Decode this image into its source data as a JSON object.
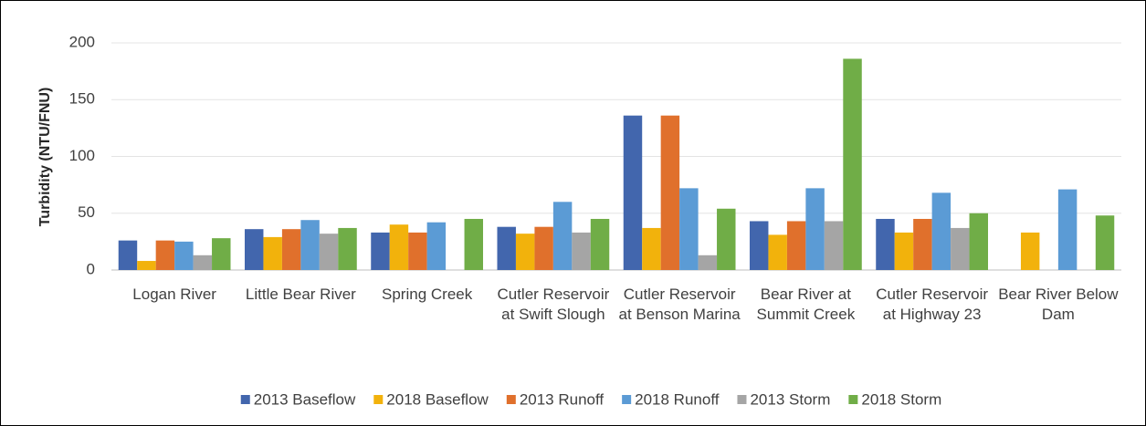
{
  "chart_data": {
    "type": "bar",
    "y_label": "Turbidity (NTU/FNU)",
    "categories": [
      "Logan River",
      "Little Bear River",
      "Spring Creek",
      "Cutler Reservoir at Swift Slough",
      "Cutler Reservoir at Benson Marina",
      "Bear River at Summit Creek",
      "Cutler Reservoir at Highway 23",
      "Bear River Below Dam"
    ],
    "series": [
      {
        "name": "2013 Baseflow",
        "color": "#4266ad",
        "values": [
          26,
          36,
          33,
          38,
          136,
          43,
          45,
          null
        ]
      },
      {
        "name": "2018 Baseflow",
        "color": "#f2b20c",
        "values": [
          8,
          29,
          40,
          32,
          37,
          31,
          33,
          33
        ]
      },
      {
        "name": "2013 Runoff",
        "color": "#e0702c",
        "values": [
          26,
          36,
          33,
          38,
          136,
          43,
          45,
          null
        ]
      },
      {
        "name": "2018 Runoff",
        "color": "#5b9bd5",
        "values": [
          25,
          44,
          42,
          60,
          72,
          72,
          68,
          71
        ]
      },
      {
        "name": "2013 Storm",
        "color": "#a5a5a5",
        "values": [
          13,
          32,
          null,
          33,
          13,
          43,
          37,
          null
        ]
      },
      {
        "name": "2018 Storm",
        "color": "#70ad47",
        "values": [
          28,
          37,
          45,
          45,
          54,
          186,
          50,
          48
        ]
      }
    ],
    "ylim": [
      0,
      200
    ],
    "yticks": [
      0,
      50,
      100,
      150,
      200
    ],
    "grid": true,
    "legend": "bottom"
  }
}
